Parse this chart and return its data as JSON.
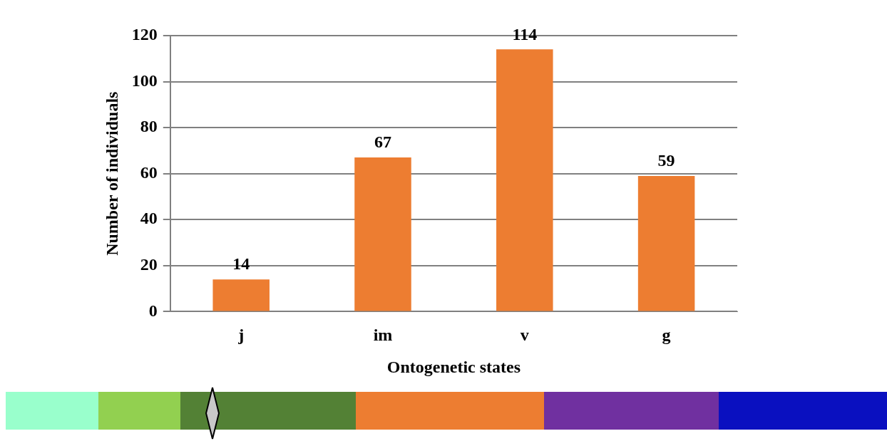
{
  "chart_data": {
    "type": "bar",
    "xlabel": "Ontogenetic states",
    "ylabel": "Number of individuals",
    "categories": [
      "j",
      "im",
      "v",
      "g"
    ],
    "values": [
      14,
      67,
      114,
      59
    ],
    "color": "#ed7d31",
    "ylim": [
      0,
      120
    ],
    "yticks": [
      0,
      20,
      40,
      60,
      80,
      100,
      120
    ],
    "grid": "y",
    "data_labels": true,
    "legend": false
  }
}
